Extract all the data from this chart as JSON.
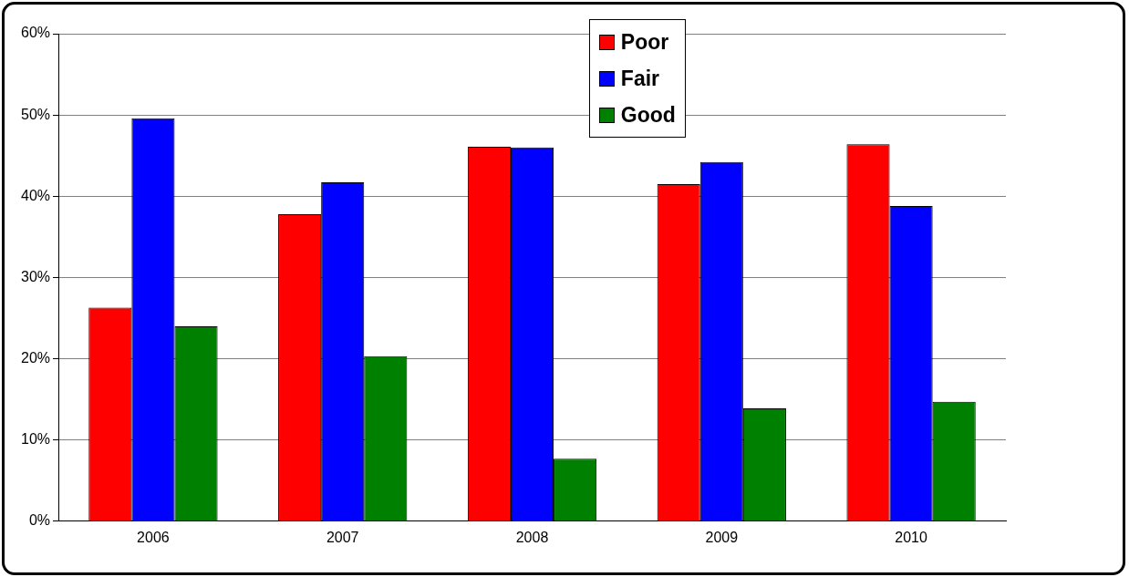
{
  "chart_data": {
    "type": "bar",
    "categories": [
      "2006",
      "2007",
      "2008",
      "2009",
      "2010"
    ],
    "series": [
      {
        "name": "Poor",
        "color": "#ff0000",
        "values": [
          26.3,
          37.8,
          46.1,
          41.5,
          46.4
        ]
      },
      {
        "name": "Fair",
        "color": "#0000ff",
        "values": [
          49.6,
          41.7,
          46.0,
          44.2,
          38.8
        ]
      },
      {
        "name": "Good",
        "color": "#008000",
        "values": [
          24.0,
          20.3,
          7.7,
          13.9,
          14.7
        ]
      }
    ],
    "ylim": [
      0,
      60
    ],
    "yticks": [
      {
        "value": 0,
        "label": "0%"
      },
      {
        "value": 10,
        "label": "10%"
      },
      {
        "value": 20,
        "label": "20%"
      },
      {
        "value": 30,
        "label": "30%"
      },
      {
        "value": 40,
        "label": "40%"
      },
      {
        "value": 50,
        "label": "50%"
      },
      {
        "value": 60,
        "label": "60%"
      }
    ],
    "grid": "y",
    "legend": "top"
  }
}
